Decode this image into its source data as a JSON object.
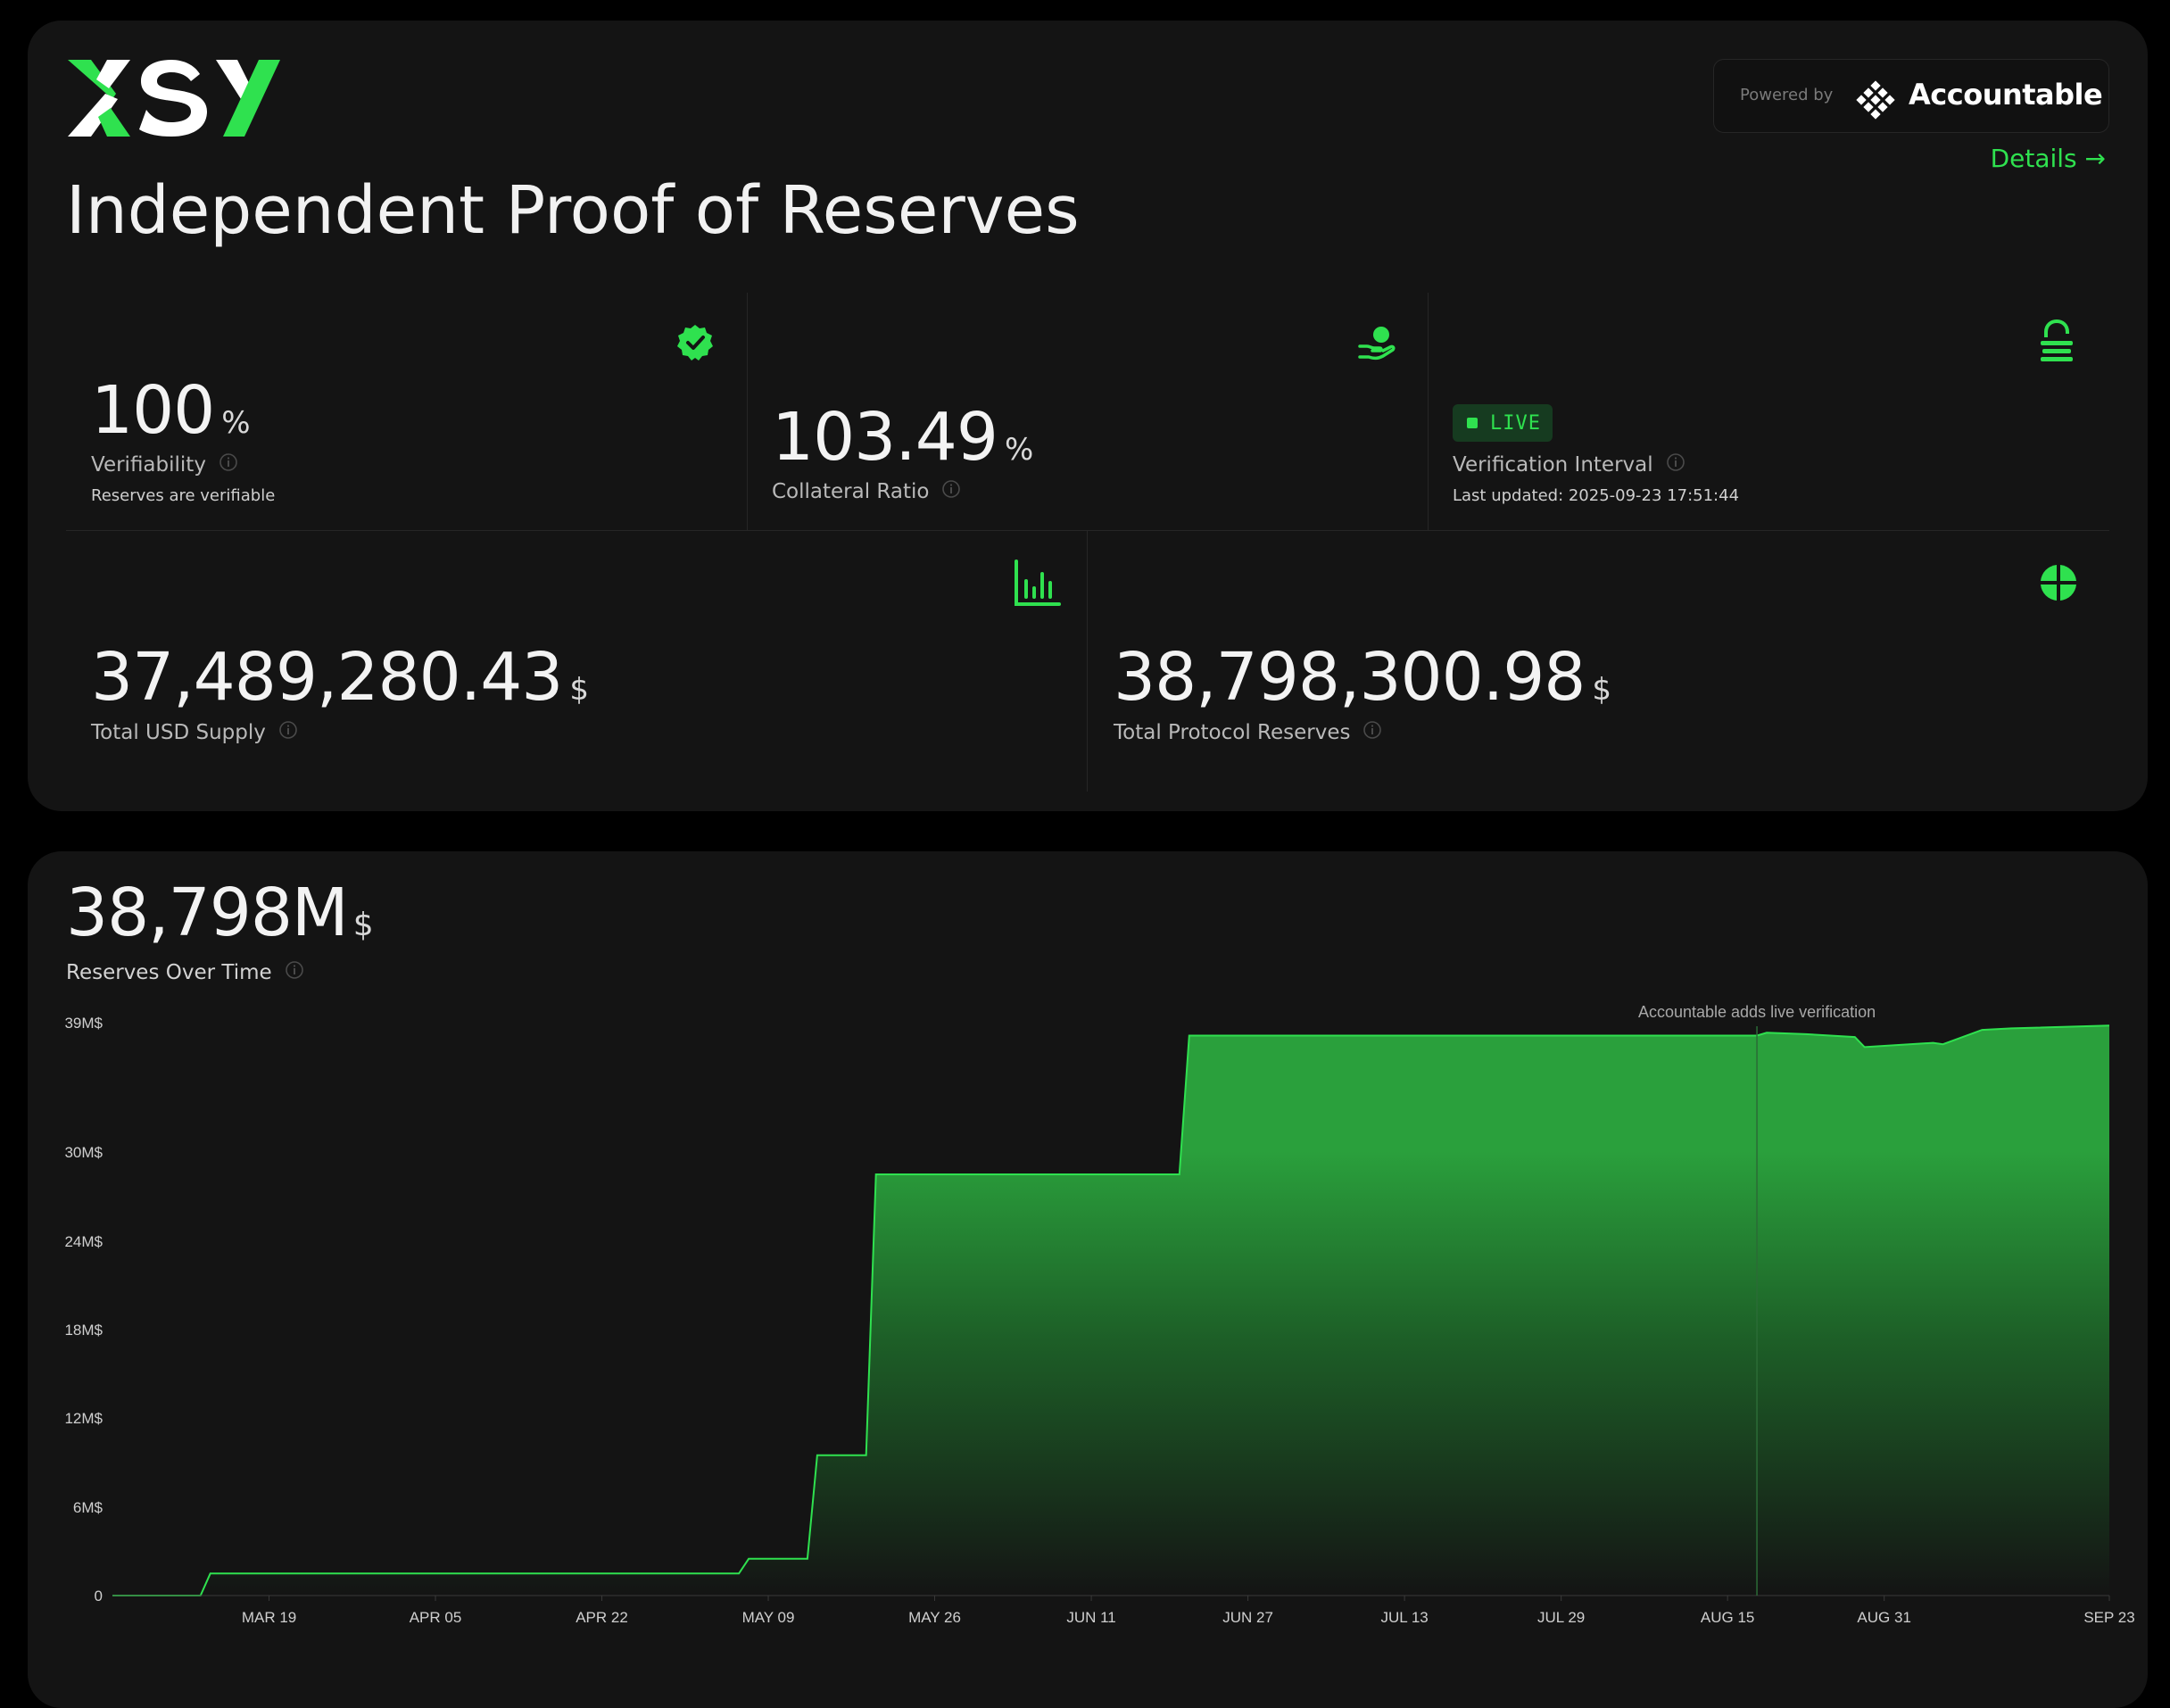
{
  "brand": {
    "logo_text": "XSY",
    "colors": {
      "accent": "#2fe14f",
      "background": "#000000",
      "card": "#141414",
      "text": "#ffffff"
    }
  },
  "header": {
    "title": "Independent Proof of Reserves",
    "powered_by_label": "Powered by",
    "provider_name": "Accountable",
    "details_link": "Details →"
  },
  "stats": {
    "verifiability": {
      "value": "100",
      "unit": "%",
      "label": "Verifiability",
      "sub": "Reserves are verifiable",
      "icon": "verified-badge-icon"
    },
    "collateral": {
      "value": "103.49",
      "unit": "%",
      "label": "Collateral Ratio",
      "icon": "hand-coin-icon"
    },
    "interval": {
      "badge": "LIVE",
      "label": "Verification Interval",
      "sub": "Last updated: 2025-09-23 17:51:44",
      "icon": "lock-open-icon"
    },
    "supply": {
      "value": "37,489,280.43",
      "unit": "$",
      "label": "Total USD Supply",
      "icon": "bar-chart-icon"
    },
    "reserves": {
      "value": "38,798,300.98",
      "unit": "$",
      "label": "Total Protocol Reserves",
      "icon": "pie-chart-icon"
    }
  },
  "chart": {
    "total_value": "38,798M",
    "total_unit": "$",
    "label": "Reserves Over Time"
  },
  "chart_data": {
    "type": "area",
    "title": "",
    "xlabel": "",
    "ylabel": "",
    "x_ticks": [
      "MAR 19",
      "APR 05",
      "APR 22",
      "MAY 09",
      "MAY 26",
      "JUN 11",
      "JUN 27",
      "JUL 13",
      "JUL 29",
      "AUG 15",
      "AUG 31",
      "SEP 23"
    ],
    "y_ticks": [
      "0",
      "6M$",
      "12M$",
      "18M$",
      "24M$",
      "30M$",
      "39M$"
    ],
    "y_tick_values": [
      0,
      6,
      12,
      18,
      24,
      30,
      39
    ],
    "ylim": [
      0,
      39
    ],
    "grid": false,
    "annotation": {
      "text": "Accountable adds live verification",
      "x": "AUG 18"
    },
    "series": [
      {
        "name": "",
        "color": "#2fe14f",
        "x": [
          "MAR 03",
          "MAR 12",
          "MAR 13",
          "MAY 06",
          "MAY 07",
          "MAY 13",
          "MAY 14",
          "MAY 19",
          "MAY 20",
          "JUN 20",
          "JUN 21",
          "AUG 18",
          "AUG 19",
          "AUG 23",
          "AUG 28",
          "AUG 29",
          "SEP 05",
          "SEP 06",
          "SEP 10",
          "SEP 13",
          "SEP 23"
        ],
        "values": [
          0.0,
          0.0,
          1.5,
          1.5,
          2.5,
          2.5,
          9.5,
          9.5,
          28.5,
          28.5,
          38.1,
          38.1,
          38.3,
          38.2,
          38.0,
          37.3,
          37.6,
          37.5,
          38.5,
          38.6,
          38.8
        ]
      }
    ]
  }
}
